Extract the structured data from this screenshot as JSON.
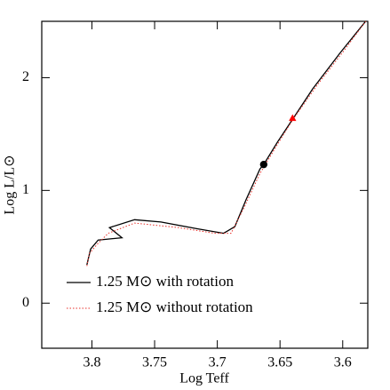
{
  "chart_data": {
    "type": "line",
    "x_label": "Log Teff",
    "y_label": "Log L/L⊙",
    "xlim": [
      3.84,
      3.58
    ],
    "ylim": [
      -0.4,
      2.5
    ],
    "xticks": [
      3.8,
      3.75,
      3.7,
      3.65,
      3.6
    ],
    "yticks": [
      0,
      1,
      2
    ],
    "legend": "lower left",
    "series": [
      {
        "name": "1.25 M⊙ with rotation",
        "color": "#000000",
        "dash": "solid",
        "x": [
          3.804,
          3.801,
          3.795,
          3.776,
          3.786,
          3.766,
          3.745,
          3.716,
          3.695,
          3.686,
          3.677,
          3.666,
          3.663,
          3.652,
          3.64,
          3.624,
          3.602,
          3.581
        ],
        "values": [
          0.34,
          0.48,
          0.56,
          0.58,
          0.67,
          0.74,
          0.72,
          0.66,
          0.62,
          0.68,
          0.92,
          1.19,
          1.23,
          1.43,
          1.63,
          1.9,
          2.22,
          2.51
        ]
      },
      {
        "name": "1.25 M⊙ without rotation",
        "color": "#e8302a",
        "dash": "dotted",
        "x": [
          3.804,
          3.802,
          3.796,
          3.787,
          3.766,
          3.731,
          3.702,
          3.689,
          3.679,
          3.666,
          3.652,
          3.639,
          3.62,
          3.599,
          3.581
        ],
        "values": [
          0.33,
          0.44,
          0.52,
          0.62,
          0.71,
          0.67,
          0.62,
          0.62,
          0.84,
          1.15,
          1.41,
          1.64,
          1.94,
          2.24,
          2.51
        ]
      }
    ],
    "markers": [
      {
        "x": 3.663,
        "y": 1.23,
        "color": "#000000",
        "shape": "circle"
      },
      {
        "x": 3.64,
        "y": 1.64,
        "color": "#ff0000",
        "shape": "triangle"
      }
    ]
  }
}
